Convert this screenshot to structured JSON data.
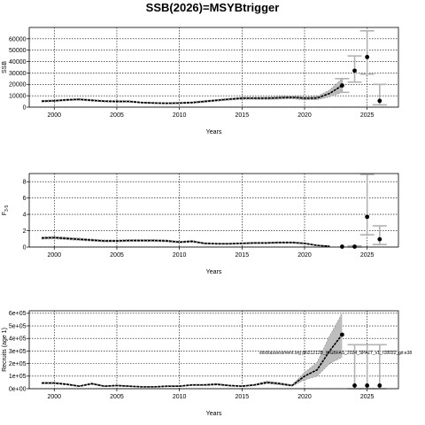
{
  "chart_title": "SSB(2026)=MSYBtrigger",
  "chart_data": [
    {
      "type": "line",
      "xlabel": "Years",
      "ylabel": "SSB",
      "xlim": [
        1998,
        2027.5
      ],
      "ylim": [
        0,
        70000
      ],
      "xticks": [
        2000,
        2005,
        2010,
        2015,
        2020,
        2025
      ],
      "xtick_labels": [
        "2000",
        "2005",
        "2010",
        "2015",
        "2020",
        "2025"
      ],
      "yticks": [
        0,
        10000,
        20000,
        30000,
        40000,
        50000,
        60000
      ],
      "ytick_labels": [
        "0",
        "10000",
        "20000",
        "30000",
        "40000",
        "50000",
        "60000"
      ],
      "grid": true,
      "series": [
        {
          "style": "estimate",
          "x": [
            1999,
            2000,
            2001,
            2002,
            2003,
            2004,
            2005,
            2006,
            2007,
            2008,
            2009,
            2010,
            2011,
            2012,
            2013,
            2014,
            2015,
            2016,
            2017,
            2018,
            2019,
            2020,
            2021,
            2022,
            2023
          ],
          "values": [
            5200,
            5600,
            6400,
            6800,
            6000,
            5200,
            5000,
            5000,
            4000,
            3600,
            3400,
            3600,
            4000,
            5000,
            6000,
            7000,
            7800,
            7800,
            7800,
            8200,
            8600,
            7800,
            8000,
            12000,
            19000
          ],
          "lower": [
            4400,
            4800,
            5600,
            6000,
            5200,
            4500,
            4300,
            4300,
            3400,
            3000,
            2800,
            3000,
            3300,
            4200,
            5200,
            6100,
            6800,
            6800,
            6700,
            7000,
            7300,
            6500,
            6500,
            9000,
            13000
          ],
          "upper": [
            6000,
            6400,
            7200,
            7600,
            6800,
            5900,
            5700,
            5700,
            4600,
            4200,
            4000,
            4200,
            4700,
            5800,
            6800,
            7900,
            8800,
            8800,
            8900,
            9400,
            9900,
            9100,
            9500,
            15000,
            25000
          ]
        },
        {
          "style": "forecast",
          "x": [
            2023,
            2024,
            2025,
            2026
          ],
          "values": [
            19000,
            32000,
            44000,
            5500
          ],
          "lower": [
            13000,
            22000,
            29000,
            2000
          ],
          "upper": [
            25000,
            45000,
            67000,
            20000
          ]
        }
      ]
    },
    {
      "type": "line",
      "xlabel": "Years",
      "ylabel": "F3-5",
      "ylabel_main": "F",
      "ylabel_sub": "3-5",
      "xlim": [
        1998,
        2027.5
      ],
      "ylim": [
        0,
        9
      ],
      "xticks": [
        2000,
        2005,
        2010,
        2015,
        2020,
        2025
      ],
      "xtick_labels": [
        "2000",
        "2005",
        "2010",
        "2015",
        "2020",
        "2025"
      ],
      "yticks": [
        0,
        2,
        4,
        6,
        8
      ],
      "ytick_labels": [
        "0",
        "2",
        "4",
        "6",
        "8"
      ],
      "grid": true,
      "series": [
        {
          "style": "estimate",
          "x": [
            1999,
            2000,
            2001,
            2002,
            2003,
            2004,
            2005,
            2006,
            2007,
            2008,
            2009,
            2010,
            2011,
            2012,
            2013,
            2014,
            2015,
            2016,
            2017,
            2018,
            2019,
            2020,
            2021,
            2022
          ],
          "values": [
            1.1,
            1.15,
            1.05,
            0.95,
            0.85,
            0.75,
            0.75,
            0.8,
            0.8,
            0.8,
            0.75,
            0.6,
            0.7,
            0.45,
            0.4,
            0.4,
            0.45,
            0.5,
            0.5,
            0.55,
            0.55,
            0.45,
            0.2,
            0.1
          ],
          "lower": [
            0.95,
            1.0,
            0.9,
            0.8,
            0.72,
            0.63,
            0.63,
            0.67,
            0.67,
            0.67,
            0.62,
            0.5,
            0.58,
            0.37,
            0.33,
            0.33,
            0.37,
            0.41,
            0.41,
            0.45,
            0.45,
            0.36,
            0.15,
            0.07
          ],
          "upper": [
            1.25,
            1.3,
            1.2,
            1.1,
            0.98,
            0.87,
            0.87,
            0.93,
            0.93,
            0.93,
            0.88,
            0.7,
            0.82,
            0.53,
            0.47,
            0.47,
            0.53,
            0.59,
            0.59,
            0.65,
            0.65,
            0.54,
            0.25,
            0.13
          ]
        },
        {
          "style": "forecast",
          "x": [
            2023,
            2024,
            2025,
            2026
          ],
          "values": [
            0.05,
            0.05,
            3.7,
            0.95
          ],
          "lower": [
            0.0,
            0.0,
            1.5,
            0.3
          ],
          "upper": [
            0.15,
            0.15,
            8.9,
            2.6
          ]
        }
      ]
    },
    {
      "type": "line",
      "xlabel": "Years",
      "ylabel": "Recruits (age 1)",
      "xlim": [
        1998,
        2027.5
      ],
      "ylim": [
        0,
        620000
      ],
      "xticks": [
        2000,
        2005,
        2010,
        2015,
        2020,
        2025
      ],
      "xtick_labels": [
        "2000",
        "2005",
        "2010",
        "2015",
        "2020",
        "2025"
      ],
      "yticks": [
        0,
        100000,
        200000,
        300000,
        400000,
        500000,
        600000
      ],
      "ytick_labels": [
        "0e+00",
        "1e+05",
        "2e+05",
        "3e+05",
        "4e+05",
        "5e+05",
        "6e+05"
      ],
      "grid": true,
      "annotation": "stockassessment.org pki21212B_WGBFAS_2024_SPALT_v1_r18032_git:e38",
      "series": [
        {
          "style": "estimate",
          "x": [
            1999,
            2000,
            2001,
            2002,
            2003,
            2004,
            2005,
            2006,
            2007,
            2008,
            2009,
            2010,
            2011,
            2012,
            2013,
            2014,
            2015,
            2016,
            2017,
            2018,
            2019,
            2020,
            2021,
            2022,
            2023
          ],
          "values": [
            45000,
            45000,
            35000,
            20000,
            40000,
            20000,
            25000,
            20000,
            15000,
            15000,
            20000,
            20000,
            30000,
            30000,
            35000,
            25000,
            20000,
            30000,
            50000,
            40000,
            25000,
            100000,
            150000,
            300000,
            430000
          ],
          "lower": [
            38000,
            38000,
            29000,
            16000,
            33000,
            16000,
            20000,
            16000,
            12000,
            12000,
            16000,
            16000,
            24000,
            24000,
            28000,
            20000,
            16000,
            24000,
            40000,
            31000,
            19000,
            70000,
            100000,
            200000,
            250000
          ],
          "upper": [
            52000,
            52000,
            41000,
            24000,
            47000,
            24000,
            30000,
            24000,
            18000,
            18000,
            24000,
            24000,
            36000,
            36000,
            42000,
            30000,
            24000,
            36000,
            60000,
            49000,
            31000,
            130000,
            210000,
            420000,
            600000
          ]
        },
        {
          "style": "forecast",
          "x": [
            2023,
            2024,
            2025,
            2026
          ],
          "values": [
            430000,
            25000,
            25000,
            25000
          ],
          "lower": [
            250000,
            0,
            0,
            0
          ],
          "upper": [
            600000,
            350000,
            350000,
            350000
          ]
        }
      ]
    }
  ]
}
